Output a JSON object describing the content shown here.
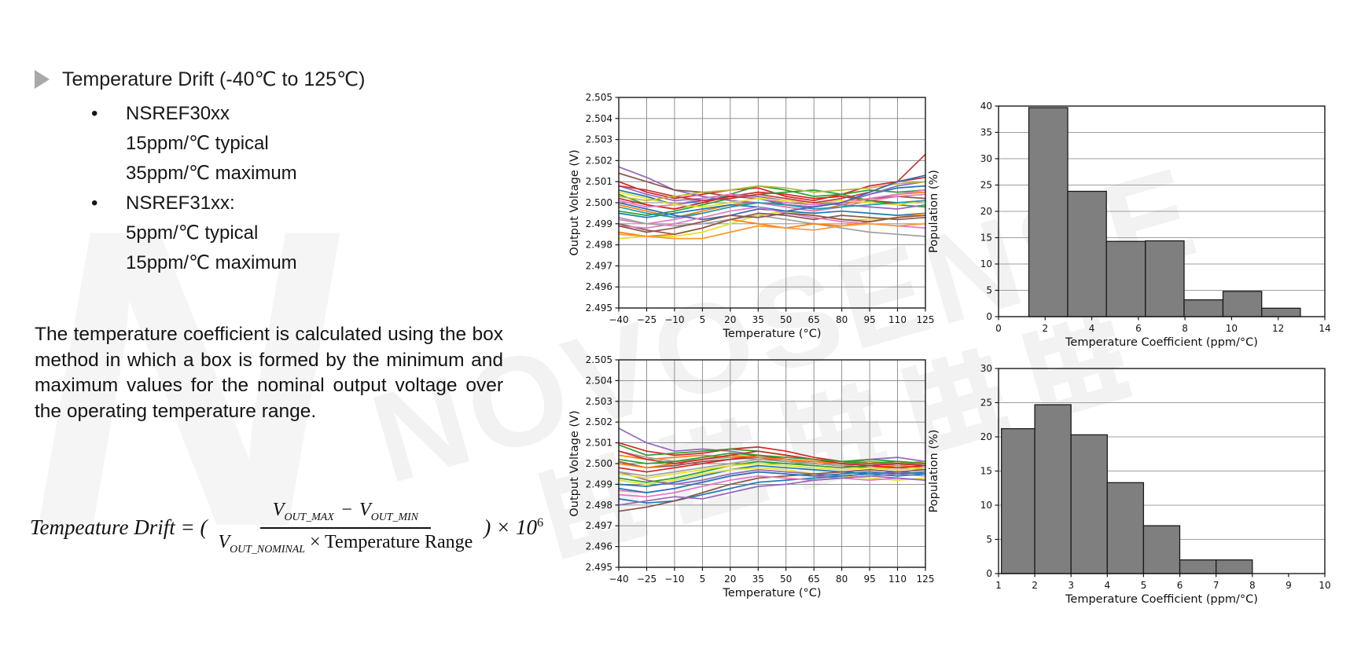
{
  "left": {
    "title": "Temperature Drift (-40℃ to 125℃)",
    "bullet_char": "•",
    "bullets": [
      {
        "label": "NSREF30xx",
        "lines": [
          "15ppm/℃ typical",
          "35ppm/℃ maximum"
        ]
      },
      {
        "label": "NSREF31xx:",
        "lines": [
          "5ppm/℃ typical",
          "15ppm/℃ maximum"
        ]
      }
    ],
    "paragraph": "The temperature coefficient is calculated using the box method in which a box is formed by the minimum and maximum values for the nominal output voltage over the operating temperature range."
  },
  "formula": {
    "lhs": "Tempeature Drift = (",
    "num": {
      "v1": "V",
      "sub1": "OUT_MAX",
      "minus": "−",
      "v2": "V",
      "sub2": "OUT_MIN"
    },
    "den": {
      "v": "V",
      "sub": "OUT_NOMINAL",
      "rest": " × Temperature Range"
    },
    "rhs_open": ") × 10",
    "exp": "6"
  },
  "watermark": {
    "text": "NOVOSENSE",
    "logo_letter": "N",
    "cjk_text": "纳芯微电子"
  },
  "chart_data": [
    {
      "id": "output-voltage-vs-temperature-nsref30xx",
      "type": "line",
      "xlabel": "Temperature (°C)",
      "ylabel": "Output Voltage (V)",
      "xlim": [
        -40,
        125
      ],
      "ylim": [
        2.495,
        2.505
      ],
      "xticks": [
        -40,
        -25,
        -10,
        5,
        20,
        35,
        50,
        65,
        80,
        95,
        110,
        125
      ],
      "ytick_step": 0.001,
      "ytick_decimals": 3,
      "grid": "both",
      "x": [
        -40,
        -25,
        -10,
        5,
        20,
        35,
        50,
        65,
        80,
        95,
        110,
        125
      ],
      "series": [
        {
          "color": "#d62728",
          "values": [
            2.501,
            2.5005,
            2.5002,
            2.5004,
            2.5006,
            2.5007,
            2.5003,
            2.5001,
            2.5004,
            2.5008,
            2.501,
            2.5012
          ]
        },
        {
          "color": "#1f77b4",
          "values": [
            2.5006,
            2.5003,
            2.4999,
            2.5001,
            2.5003,
            2.5002,
            2.4999,
            2.4998,
            2.5,
            2.5004,
            2.5007,
            2.5008
          ]
        },
        {
          "color": "#ff7f0e",
          "values": [
            2.4999,
            2.4996,
            2.4993,
            2.4996,
            2.4999,
            2.5,
            2.4998,
            2.4996,
            2.4999,
            2.5002,
            2.5004,
            2.5005
          ]
        },
        {
          "color": "#2ca02c",
          "values": [
            2.5004,
            2.4999,
            2.4997,
            2.5,
            2.5004,
            2.5008,
            2.5006,
            2.5003,
            2.5004,
            2.5006,
            2.5005,
            2.5006
          ]
        },
        {
          "color": "#9467bd",
          "values": [
            2.5017,
            2.5012,
            2.5006,
            2.5003,
            2.5001,
            2.5,
            2.4999,
            2.4998,
            2.5,
            2.5004,
            2.5008,
            2.501
          ]
        },
        {
          "color": "#8c564b",
          "values": [
            2.5014,
            2.501,
            2.5006,
            2.5005,
            2.5003,
            2.5002,
            2.5,
            2.4999,
            2.5,
            2.5002,
            2.5003,
            2.5002
          ]
        },
        {
          "color": "#e377c2",
          "values": [
            2.4992,
            2.499,
            2.4992,
            2.4995,
            2.4998,
            2.5,
            2.4998,
            2.4996,
            2.4998,
            2.5001,
            2.5003,
            2.5004
          ]
        },
        {
          "color": "#a0a0a0",
          "values": [
            2.4993,
            2.499,
            2.4989,
            2.499,
            2.4992,
            2.4994,
            2.4992,
            2.499,
            2.4988,
            2.4986,
            2.4985,
            2.4984
          ]
        },
        {
          "color": "#e2e229",
          "values": [
            2.4983,
            2.4984,
            2.4984,
            2.4986,
            2.499,
            2.4994,
            2.4996,
            2.4994,
            2.4992,
            2.4992,
            2.4993,
            2.4994
          ]
        },
        {
          "color": "#d62728",
          "values": [
            2.5002,
            2.4999,
            2.4997,
            2.5,
            2.5003,
            2.5005,
            2.5004,
            2.5002,
            2.5003,
            2.5001,
            2.5,
            2.5001
          ]
        },
        {
          "color": "#1f77b4",
          "values": [
            2.4995,
            2.4993,
            2.4995,
            2.4997,
            2.4999,
            2.4998,
            2.4996,
            2.4995,
            2.4996,
            2.4995,
            2.4994,
            2.4995
          ]
        },
        {
          "color": "#ff7f0e",
          "values": [
            2.4986,
            2.4984,
            2.4985,
            2.4988,
            2.4992,
            2.499,
            2.4988,
            2.499,
            2.4989,
            2.4991,
            2.4993,
            2.4995
          ]
        },
        {
          "color": "#2ca02c",
          "values": [
            2.4996,
            2.4994,
            2.4996,
            2.4999,
            2.5002,
            2.5004,
            2.5005,
            2.5006,
            2.5004,
            2.5001,
            2.4999,
            2.4998
          ]
        },
        {
          "color": "#9467bd",
          "values": [
            2.5008,
            2.5004,
            2.5001,
            2.5002,
            2.5004,
            2.5003,
            2.5001,
            2.5,
            2.4999,
            2.4998,
            2.4997,
            2.4999
          ]
        },
        {
          "color": "#8c564b",
          "values": [
            2.499,
            2.4987,
            2.4985,
            2.4988,
            2.4992,
            2.4995,
            2.4994,
            2.4992,
            2.4994,
            2.4993,
            2.4992,
            2.4993
          ]
        },
        {
          "color": "#e377c2",
          "values": [
            2.5001,
            2.4998,
            2.4999,
            2.5002,
            2.5004,
            2.5002,
            2.5,
            2.4999,
            2.5,
            2.5002,
            2.5004,
            2.5006
          ]
        },
        {
          "color": "#e2e229",
          "values": [
            2.5005,
            2.5002,
            2.4999,
            2.4998,
            2.5,
            2.5002,
            2.5001,
            2.5,
            2.5001,
            2.5,
            2.4999,
            2.5001
          ]
        },
        {
          "color": "#c23b3b",
          "values": [
            2.5008,
            2.5006,
            2.5003,
            2.5001,
            2.5002,
            2.5004,
            2.5002,
            2.5,
            2.5002,
            2.5005,
            2.501,
            2.5023
          ]
        },
        {
          "color": "#17a0a8",
          "values": [
            2.4998,
            2.4995,
            2.4993,
            2.4995,
            2.4998,
            2.5,
            2.4999,
            2.4997,
            2.4998,
            2.4999,
            2.5,
            2.5001
          ]
        },
        {
          "color": "#b8b83a",
          "values": [
            2.5003,
            2.5001,
            2.5003,
            2.5005,
            2.5006,
            2.5008,
            2.5007,
            2.5005,
            2.5006,
            2.5007,
            2.5009,
            2.501
          ]
        },
        {
          "color": "#3a6ab0",
          "values": [
            2.5,
            2.4997,
            2.4994,
            2.4992,
            2.4994,
            2.4997,
            2.4996,
            2.4998,
            2.5,
            2.5005,
            2.501,
            2.5013
          ]
        },
        {
          "color": "#e377c2",
          "values": [
            2.4989,
            2.4988,
            2.499,
            2.4993,
            2.4996,
            2.4998,
            2.4995,
            2.4993,
            2.4991,
            2.499,
            2.4989,
            2.4988
          ]
        },
        {
          "color": "#ff9933",
          "values": [
            2.4985,
            2.4984,
            2.4983,
            2.4983,
            2.4986,
            2.4989,
            2.4988,
            2.4987,
            2.4989,
            2.499,
            2.4989,
            2.499
          ]
        },
        {
          "color": "#8c564b",
          "values": [
            2.4989,
            2.4986,
            2.4988,
            2.4991,
            2.4994,
            2.4993,
            2.4995,
            2.4994,
            2.4992,
            2.4991,
            2.4993,
            2.4994
          ]
        }
      ]
    },
    {
      "id": "temperature-coefficient-histogram-nsref30xx",
      "type": "bar",
      "xlabel": "Temperature Coefficient (ppm/°C)",
      "ylabel": "Population (%)",
      "xlim": [
        0,
        14
      ],
      "ylim": [
        0,
        40
      ],
      "xticks": [
        0,
        2,
        4,
        6,
        8,
        10,
        12,
        14
      ],
      "yticks": [
        0,
        5,
        10,
        15,
        20,
        25,
        30,
        35,
        40
      ],
      "grid": "y",
      "bar_fill": "#7f7f7f",
      "bin_edges": [
        1.3,
        2.97,
        4.63,
        6.3,
        7.96,
        9.63,
        11.29,
        12.95
      ],
      "values": [
        39.7,
        23.8,
        14.3,
        14.4,
        3.2,
        4.8,
        1.6
      ]
    },
    {
      "id": "output-voltage-vs-temperature-nsref31xx",
      "type": "line",
      "xlabel": "Temperature (°C)",
      "ylabel": "Output Voltage (V)",
      "xlim": [
        -40,
        125
      ],
      "ylim": [
        2.495,
        2.505
      ],
      "xticks": [
        -40,
        -25,
        -10,
        5,
        20,
        35,
        50,
        65,
        80,
        95,
        110,
        125
      ],
      "ytick_step": 0.001,
      "ytick_decimals": 3,
      "grid": "both",
      "x": [
        -40,
        -25,
        -10,
        5,
        20,
        35,
        50,
        65,
        80,
        95,
        110,
        125
      ],
      "series": [
        {
          "color": "#9467bd",
          "values": [
            2.5017,
            2.501,
            2.5006,
            2.5007,
            2.5006,
            2.5004,
            2.5002,
            2.5001,
            2.5,
            2.5002,
            2.5003,
            2.5001
          ]
        },
        {
          "color": "#d62728",
          "values": [
            2.501,
            2.5006,
            2.5004,
            2.5005,
            2.5007,
            2.5008,
            2.5006,
            2.5003,
            2.5001,
            2.5,
            2.5001,
            2.5
          ]
        },
        {
          "color": "#2ca02c",
          "values": [
            2.5009,
            2.5004,
            2.5005,
            2.5006,
            2.5007,
            2.5006,
            2.5004,
            2.5002,
            2.5001,
            2.5002,
            2.5001,
            2.5
          ]
        },
        {
          "color": "#ff7f0e",
          "values": [
            2.5004,
            2.5002,
            2.5003,
            2.5004,
            2.5003,
            2.5004,
            2.5002,
            2.5,
            2.4999,
            2.4998,
            2.4999,
            2.4998
          ]
        },
        {
          "color": "#a0a0a0",
          "values": [
            2.5006,
            2.5003,
            2.5001,
            2.5002,
            2.5003,
            2.5002,
            2.5001,
            2.5,
            2.4999,
            2.4998,
            2.4998,
            2.4997
          ]
        },
        {
          "color": "#8c564b",
          "values": [
            2.5001,
            2.4998,
            2.4999,
            2.5001,
            2.5002,
            2.5003,
            2.5001,
            2.5,
            2.4999,
            2.4998,
            2.4997,
            2.4998
          ]
        },
        {
          "color": "#d62728",
          "values": [
            2.4998,
            2.4996,
            2.4998,
            2.5,
            2.5002,
            2.5004,
            2.5002,
            2.5001,
            2.5,
            2.4999,
            2.4998,
            2.4999
          ]
        },
        {
          "color": "#1f77b4",
          "values": [
            2.499,
            2.4989,
            2.4991,
            2.4994,
            2.4997,
            2.4999,
            2.4998,
            2.4997,
            2.4996,
            2.4995,
            2.4996,
            2.4995
          ]
        },
        {
          "color": "#e2e229",
          "values": [
            2.4992,
            2.499,
            2.4992,
            2.4995,
            2.4997,
            2.4998,
            2.4997,
            2.4995,
            2.4994,
            2.4993,
            2.4992,
            2.4993
          ]
        },
        {
          "color": "#e377c2",
          "values": [
            2.4987,
            2.4986,
            2.4988,
            2.4991,
            2.4994,
            2.4996,
            2.4995,
            2.4994,
            2.4993,
            2.4994,
            2.4995,
            2.4994
          ]
        },
        {
          "color": "#9467bd",
          "values": [
            2.4996,
            2.4992,
            2.499,
            2.4992,
            2.4995,
            2.4997,
            2.4996,
            2.4995,
            2.4994,
            2.4995,
            2.4996,
            2.4995
          ]
        },
        {
          "color": "#1f77b4",
          "values": [
            2.4983,
            2.4981,
            2.4982,
            2.4985,
            2.4988,
            2.4991,
            2.4992,
            2.4993,
            2.4994,
            2.4995,
            2.4994,
            2.4995
          ]
        },
        {
          "color": "#8c564b",
          "values": [
            2.4977,
            2.4979,
            2.4982,
            2.4986,
            2.499,
            2.4993,
            2.4994,
            2.4995,
            2.4996,
            2.4997,
            2.4996,
            2.4997
          ]
        },
        {
          "color": "#2ca02c",
          "values": [
            2.4993,
            2.4991,
            2.4993,
            2.4996,
            2.4999,
            2.5001,
            2.5,
            2.4999,
            2.4998,
            2.4999,
            2.5,
            2.4999
          ]
        },
        {
          "color": "#ff7f0e",
          "values": [
            2.5,
            2.4998,
            2.5,
            2.5002,
            2.5004,
            2.5003,
            2.5002,
            2.5001,
            2.5,
            2.5001,
            2.5,
            2.5001
          ]
        },
        {
          "color": "#a0a0a0",
          "values": [
            2.4996,
            2.4994,
            2.4996,
            2.4998,
            2.5,
            2.5002,
            2.5001,
            2.5,
            2.4999,
            2.5,
            2.4999,
            2.5
          ]
        },
        {
          "color": "#d62728",
          "values": [
            2.5006,
            2.5002,
            2.5,
            2.5002,
            2.5004,
            2.5006,
            2.5004,
            2.5002,
            2.5,
            2.4999,
            2.5,
            2.4999
          ]
        },
        {
          "color": "#e377c2",
          "values": [
            2.4985,
            2.4984,
            2.4986,
            2.4989,
            2.4992,
            2.4994,
            2.4993,
            2.4992,
            2.4993,
            2.4992,
            2.4993,
            2.4992
          ]
        },
        {
          "color": "#9467bd",
          "values": [
            2.498,
            2.4982,
            2.4984,
            2.4983,
            2.4986,
            2.4989,
            2.499,
            2.4992,
            2.4993,
            2.4994,
            2.4993,
            2.4992
          ]
        },
        {
          "color": "#1f77b4",
          "values": [
            2.4988,
            2.4986,
            2.4988,
            2.4991,
            2.4994,
            2.4996,
            2.4995,
            2.4994,
            2.4995,
            2.4996,
            2.4995,
            2.4996
          ]
        },
        {
          "color": "#e2e229",
          "values": [
            2.4995,
            2.4993,
            2.4995,
            2.4997,
            2.4999,
            2.5,
            2.4999,
            2.4998,
            2.4997,
            2.4998,
            2.4997,
            2.4998
          ]
        },
        {
          "color": "#2ca02c",
          "values": [
            2.5002,
            2.5,
            2.5001,
            2.5003,
            2.5005,
            2.5004,
            2.5003,
            2.5002,
            2.5001,
            2.5,
            2.5001,
            2.5
          ]
        }
      ]
    },
    {
      "id": "temperature-coefficient-histogram-nsref31xx",
      "type": "bar",
      "xlabel": "Temperature Coefficient (ppm/°C)",
      "ylabel": "Population (%)",
      "xlim": [
        1,
        10
      ],
      "ylim": [
        0,
        30
      ],
      "xticks": [
        1,
        2,
        3,
        4,
        5,
        6,
        7,
        8,
        9,
        10
      ],
      "yticks": [
        0,
        5,
        10,
        15,
        20,
        25,
        30
      ],
      "grid": "y",
      "bar_fill": "#7f7f7f",
      "bin_edges": [
        1.08,
        2,
        3,
        4,
        5,
        6,
        7,
        8
      ],
      "values": [
        21.2,
        24.7,
        20.3,
        13.3,
        7.0,
        2.0,
        2.0
      ]
    }
  ]
}
